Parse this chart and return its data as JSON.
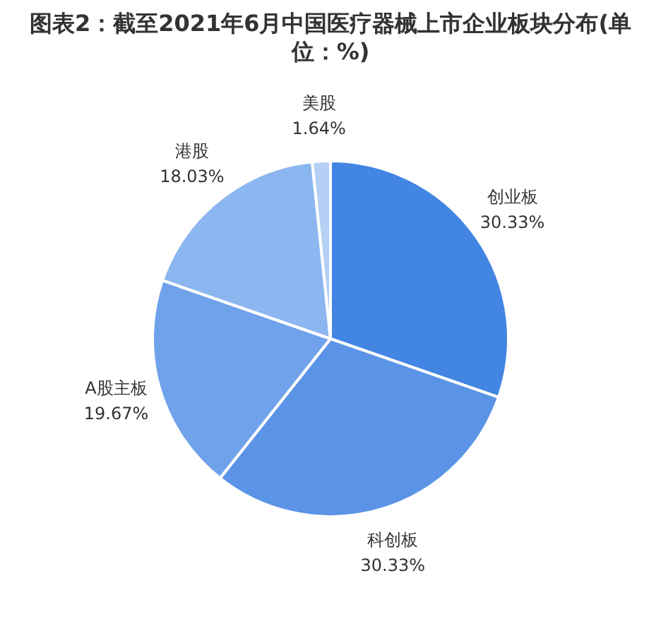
{
  "chart_data": {
    "type": "pie",
    "title": "图表2：截至2021年6月中国医疗器械上市企业板块分布(单位：%)",
    "categories": [
      "创业板",
      "科创板",
      "A股主板",
      "港股",
      "美股"
    ],
    "values": [
      30.33,
      30.33,
      19.67,
      18.03,
      1.64
    ],
    "value_labels": [
      "30.33%",
      "30.33%",
      "19.67%",
      "18.03%",
      "1.64%"
    ],
    "colors": [
      "#4285e2",
      "#5b94e6",
      "#6fa2ea",
      "#8cb6f0",
      "#b5cff5"
    ]
  }
}
